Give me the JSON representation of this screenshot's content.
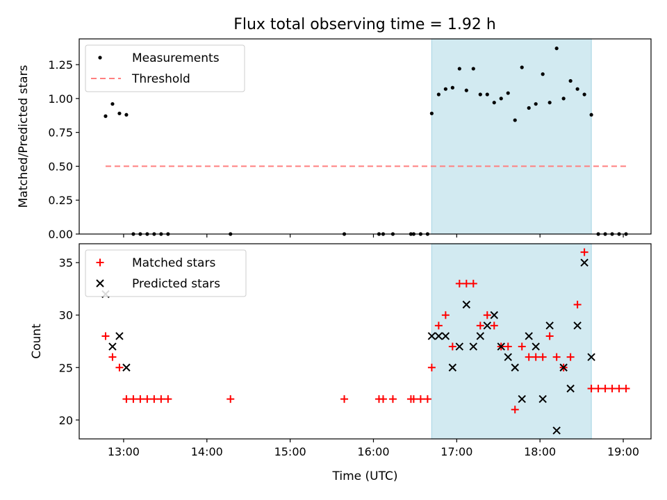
{
  "figure": {
    "title": "Flux total observing time = 1.92 h"
  },
  "colors": {
    "highlight": "#add8e6",
    "threshold": "#ff7f7f",
    "measurement": "#000000",
    "matched": "#ff0000",
    "predicted": "#000000"
  },
  "chart_data": [
    {
      "type": "scatter",
      "ylabel": "Matched/Predicted stars",
      "xlim": [
        "12:28",
        "19:20"
      ],
      "ylim": [
        0,
        1.44
      ],
      "yticks": [
        "0.00",
        "0.25",
        "0.50",
        "0.75",
        "1.00",
        "1.25"
      ],
      "x_ticks": [
        "13:00",
        "14:00",
        "15:00",
        "16:00",
        "17:00",
        "18:00",
        "19:00"
      ],
      "highlight_span": [
        "16:42",
        "18:37"
      ],
      "legend": {
        "position": "upper left",
        "entries": [
          "Measurements",
          "Threshold"
        ]
      },
      "threshold": {
        "y": 0.5,
        "x_range": [
          "12:47",
          "19:02"
        ]
      },
      "series": [
        {
          "name": "Measurements",
          "marker": "dot",
          "points": [
            {
              "t": "12:47",
              "y": 0.87
            },
            {
              "t": "12:52",
              "y": 0.96
            },
            {
              "t": "12:57",
              "y": 0.89
            },
            {
              "t": "13:02",
              "y": 0.88
            },
            {
              "t": "13:07",
              "y": 0
            },
            {
              "t": "13:12",
              "y": 0
            },
            {
              "t": "13:17",
              "y": 0
            },
            {
              "t": "13:22",
              "y": 0
            },
            {
              "t": "13:27",
              "y": 0
            },
            {
              "t": "13:32",
              "y": 0
            },
            {
              "t": "14:17",
              "y": 0
            },
            {
              "t": "15:39",
              "y": 0
            },
            {
              "t": "16:04",
              "y": 0
            },
            {
              "t": "16:07",
              "y": 0
            },
            {
              "t": "16:14",
              "y": 0
            },
            {
              "t": "16:27",
              "y": 0
            },
            {
              "t": "16:29",
              "y": 0
            },
            {
              "t": "16:34",
              "y": 0
            },
            {
              "t": "16:39",
              "y": 0
            },
            {
              "t": "16:42",
              "y": 0.89
            },
            {
              "t": "16:47",
              "y": 1.03
            },
            {
              "t": "16:52",
              "y": 1.07
            },
            {
              "t": "16:57",
              "y": 1.08
            },
            {
              "t": "17:02",
              "y": 1.22
            },
            {
              "t": "17:07",
              "y": 1.06
            },
            {
              "t": "17:12",
              "y": 1.22
            },
            {
              "t": "17:17",
              "y": 1.03
            },
            {
              "t": "17:22",
              "y": 1.03
            },
            {
              "t": "17:27",
              "y": 0.97
            },
            {
              "t": "17:32",
              "y": 1.0
            },
            {
              "t": "17:37",
              "y": 1.04
            },
            {
              "t": "17:42",
              "y": 0.84
            },
            {
              "t": "17:47",
              "y": 1.23
            },
            {
              "t": "17:52",
              "y": 0.93
            },
            {
              "t": "17:57",
              "y": 0.96
            },
            {
              "t": "18:02",
              "y": 1.18
            },
            {
              "t": "18:07",
              "y": 0.97
            },
            {
              "t": "18:12",
              "y": 1.37
            },
            {
              "t": "18:17",
              "y": 1.0
            },
            {
              "t": "18:22",
              "y": 1.13
            },
            {
              "t": "18:27",
              "y": 1.07
            },
            {
              "t": "18:32",
              "y": 1.03
            },
            {
              "t": "18:37",
              "y": 0.88
            },
            {
              "t": "18:42",
              "y": 0
            },
            {
              "t": "18:47",
              "y": 0
            },
            {
              "t": "18:52",
              "y": 0
            },
            {
              "t": "18:57",
              "y": 0
            },
            {
              "t": "19:02",
              "y": 0
            }
          ]
        }
      ]
    },
    {
      "type": "scatter",
      "xlabel": "Time (UTC)",
      "ylabel": "Count",
      "xlim": [
        "12:28",
        "19:20"
      ],
      "ylim": [
        18.2,
        36.8
      ],
      "yticks": [
        "20",
        "25",
        "30",
        "35"
      ],
      "x_ticks": [
        "13:00",
        "14:00",
        "15:00",
        "16:00",
        "17:00",
        "18:00",
        "19:00"
      ],
      "highlight_span": [
        "16:42",
        "18:37"
      ],
      "legend": {
        "position": "upper left",
        "entries": [
          "Matched stars",
          "Predicted stars"
        ]
      },
      "series": [
        {
          "name": "Matched stars",
          "marker": "plus",
          "points": [
            {
              "t": "12:47",
              "y": 28
            },
            {
              "t": "12:52",
              "y": 26
            },
            {
              "t": "12:57",
              "y": 25
            },
            {
              "t": "13:02",
              "y": 22
            },
            {
              "t": "13:07",
              "y": 22
            },
            {
              "t": "13:12",
              "y": 22
            },
            {
              "t": "13:17",
              "y": 22
            },
            {
              "t": "13:22",
              "y": 22
            },
            {
              "t": "13:27",
              "y": 22
            },
            {
              "t": "13:32",
              "y": 22
            },
            {
              "t": "14:17",
              "y": 22
            },
            {
              "t": "15:39",
              "y": 22
            },
            {
              "t": "16:04",
              "y": 22
            },
            {
              "t": "16:07",
              "y": 22
            },
            {
              "t": "16:14",
              "y": 22
            },
            {
              "t": "16:27",
              "y": 22
            },
            {
              "t": "16:29",
              "y": 22
            },
            {
              "t": "16:34",
              "y": 22
            },
            {
              "t": "16:39",
              "y": 22
            },
            {
              "t": "16:42",
              "y": 25
            },
            {
              "t": "16:47",
              "y": 29
            },
            {
              "t": "16:52",
              "y": 30
            },
            {
              "t": "16:57",
              "y": 27
            },
            {
              "t": "17:02",
              "y": 33
            },
            {
              "t": "17:07",
              "y": 33
            },
            {
              "t": "17:12",
              "y": 33
            },
            {
              "t": "17:17",
              "y": 29
            },
            {
              "t": "17:22",
              "y": 30
            },
            {
              "t": "17:27",
              "y": 29
            },
            {
              "t": "17:32",
              "y": 27
            },
            {
              "t": "17:37",
              "y": 27
            },
            {
              "t": "17:42",
              "y": 21
            },
            {
              "t": "17:47",
              "y": 27
            },
            {
              "t": "17:52",
              "y": 26
            },
            {
              "t": "17:57",
              "y": 26
            },
            {
              "t": "18:02",
              "y": 26
            },
            {
              "t": "18:07",
              "y": 28
            },
            {
              "t": "18:12",
              "y": 26
            },
            {
              "t": "18:17",
              "y": 25
            },
            {
              "t": "18:22",
              "y": 26
            },
            {
              "t": "18:27",
              "y": 31
            },
            {
              "t": "18:32",
              "y": 36
            },
            {
              "t": "18:37",
              "y": 23
            },
            {
              "t": "18:42",
              "y": 23
            },
            {
              "t": "18:47",
              "y": 23
            },
            {
              "t": "18:52",
              "y": 23
            },
            {
              "t": "18:57",
              "y": 23
            },
            {
              "t": "19:02",
              "y": 23
            }
          ]
        },
        {
          "name": "Predicted stars",
          "marker": "x",
          "points": [
            {
              "t": "12:47",
              "y": 32
            },
            {
              "t": "12:52",
              "y": 27
            },
            {
              "t": "12:57",
              "y": 28
            },
            {
              "t": "13:02",
              "y": 25
            },
            {
              "t": "16:42",
              "y": 28
            },
            {
              "t": "16:47",
              "y": 28
            },
            {
              "t": "16:52",
              "y": 28
            },
            {
              "t": "16:57",
              "y": 25
            },
            {
              "t": "17:02",
              "y": 27
            },
            {
              "t": "17:07",
              "y": 31
            },
            {
              "t": "17:12",
              "y": 27
            },
            {
              "t": "17:17",
              "y": 28
            },
            {
              "t": "17:22",
              "y": 29
            },
            {
              "t": "17:27",
              "y": 30
            },
            {
              "t": "17:32",
              "y": 27
            },
            {
              "t": "17:37",
              "y": 26
            },
            {
              "t": "17:42",
              "y": 25
            },
            {
              "t": "17:47",
              "y": 22
            },
            {
              "t": "17:52",
              "y": 28
            },
            {
              "t": "17:57",
              "y": 27
            },
            {
              "t": "18:02",
              "y": 22
            },
            {
              "t": "18:07",
              "y": 29
            },
            {
              "t": "18:12",
              "y": 19
            },
            {
              "t": "18:17",
              "y": 25
            },
            {
              "t": "18:22",
              "y": 23
            },
            {
              "t": "18:27",
              "y": 29
            },
            {
              "t": "18:32",
              "y": 35
            },
            {
              "t": "18:37",
              "y": 26
            }
          ]
        }
      ]
    }
  ]
}
